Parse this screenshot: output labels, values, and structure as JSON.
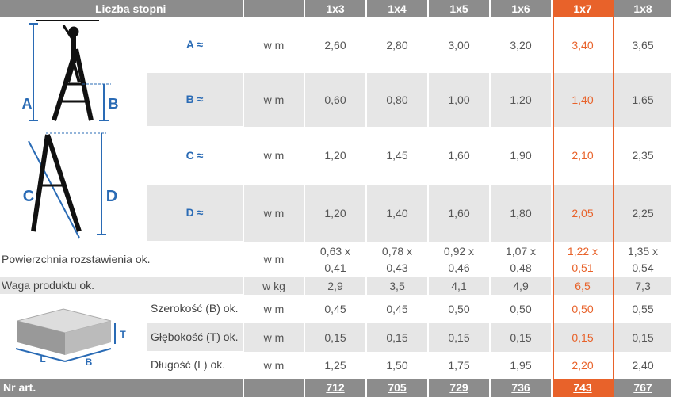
{
  "header": {
    "title": "Liczba stopni",
    "columns": [
      "1x3",
      "1x4",
      "1x5",
      "1x6",
      "1x7",
      "1x8"
    ]
  },
  "rows": [
    {
      "label": "A ≈",
      "unit": "w m",
      "values": [
        "2,60",
        "2,80",
        "3,00",
        "3,20",
        "3,40",
        "3,65"
      ]
    },
    {
      "label": "B ≈",
      "unit": "w m",
      "values": [
        "0,60",
        "0,80",
        "1,00",
        "1,20",
        "1,40",
        "1,65"
      ]
    },
    {
      "label": "C ≈",
      "unit": "w m",
      "values": [
        "1,20",
        "1,45",
        "1,60",
        "1,90",
        "2,10",
        "2,35"
      ]
    },
    {
      "label": "D ≈",
      "unit": "w m",
      "values": [
        "1,20",
        "1,40",
        "1,60",
        "1,80",
        "2,05",
        "2,25"
      ]
    },
    {
      "label": "Powierzchnia rozstawienia ok.",
      "unit": "w m",
      "values": [
        [
          "0,63 x",
          "0,41"
        ],
        [
          "0,78 x",
          "0,43"
        ],
        [
          "0,92 x",
          "0,46"
        ],
        [
          "1,07 x",
          "0,48"
        ],
        [
          "1,22 x",
          "0,51"
        ],
        [
          "1,35 x",
          "0,54"
        ]
      ]
    },
    {
      "label": "Waga produktu ok.",
      "unit": "w kg",
      "values": [
        "2,9",
        "3,5",
        "4,1",
        "4,9",
        "6,5",
        "7,3"
      ]
    },
    {
      "label": "Szerokość (B) ok.",
      "unit": "w m",
      "values": [
        "0,45",
        "0,45",
        "0,50",
        "0,50",
        "0,50",
        "0,55"
      ]
    },
    {
      "label": "Głębokość (T) ok.",
      "unit": "w m",
      "values": [
        "0,15",
        "0,15",
        "0,15",
        "0,15",
        "0,15",
        "0,15"
      ]
    },
    {
      "label": "Długość (L) ok.",
      "unit": "w m",
      "values": [
        "1,25",
        "1,50",
        "1,75",
        "1,95",
        "2,20",
        "2,40"
      ]
    }
  ],
  "footer": {
    "label": "Nr art.",
    "values": [
      "712",
      "705",
      "729",
      "736",
      "743",
      "767"
    ]
  },
  "figures": {
    "ladder_top": [
      "A",
      "B"
    ],
    "ladder_bottom": [
      "C",
      "D"
    ],
    "box": [
      "T",
      "L",
      "B"
    ]
  }
}
